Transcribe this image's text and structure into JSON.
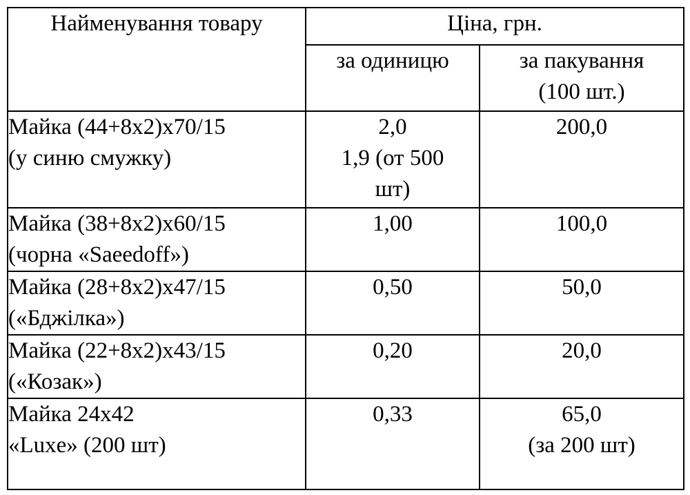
{
  "table": {
    "header": {
      "name": "Найменування товару",
      "price": "Ціна, грн.",
      "per_unit": "за одиницю",
      "per_pack_line1": "за пакування",
      "per_pack_line2": "(100 шт.)"
    },
    "rows": [
      {
        "name_line1": "Майка (44+8х2)х70/15",
        "name_line2": "(у синю смужку)",
        "unit_line1": "2,0",
        "unit_line2": "1,9 (от 500",
        "unit_line3": "шт)",
        "pack_line1": "200,0",
        "pack_line2": ""
      },
      {
        "name_line1": "Майка (38+8х2)х60/15",
        "name_line2": "(чорна «Saeedoff»)",
        "unit_line1": "1,00",
        "unit_line2": "",
        "unit_line3": "",
        "pack_line1": "100,0",
        "pack_line2": ""
      },
      {
        "name_line1": "Майка (28+8х2)х47/15",
        "name_line2": "(«Бджілка»)",
        "unit_line1": "0,50",
        "unit_line2": "",
        "unit_line3": "",
        "pack_line1": "50,0",
        "pack_line2": ""
      },
      {
        "name_line1": "Майка (22+8х2)х43/15",
        "name_line2": "(«Козак»)",
        "unit_line1": "0,20",
        "unit_line2": "",
        "unit_line3": "",
        "pack_line1": "20,0",
        "pack_line2": ""
      },
      {
        "name_line1": "Майка 24х42",
        "name_line2": "«Luxe» (200 шт)",
        "unit_line1": "0,33",
        "unit_line2": "",
        "unit_line3": "",
        "pack_line1": "65,0",
        "pack_line2": "(за 200 шт)"
      }
    ]
  }
}
